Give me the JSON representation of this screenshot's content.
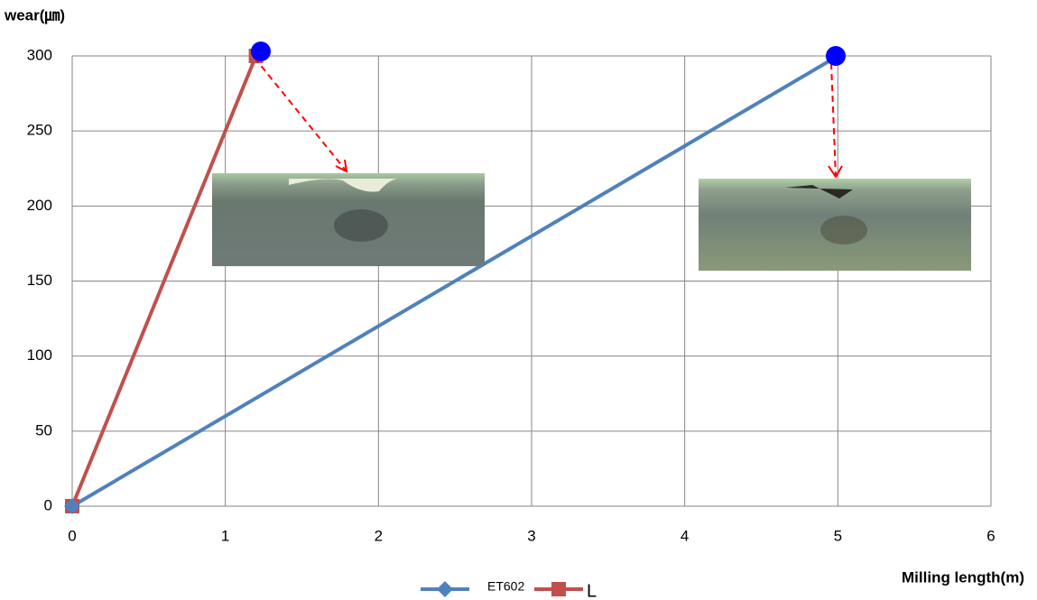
{
  "chart_data": {
    "type": "line",
    "y_label": "wear(㎛)",
    "x_label": "Milling length(m)",
    "series": [
      {
        "name": "ET602",
        "color": "#4f81bd",
        "marker": "diamond",
        "x": [
          0,
          5
        ],
        "values": [
          0,
          300
        ]
      },
      {
        "name": "L",
        "color": "#c0504d",
        "marker": "square",
        "x": [
          0,
          1.2
        ],
        "values": [
          0,
          300
        ]
      }
    ],
    "xlim": [
      0,
      6
    ],
    "xticks": [
      0,
      1,
      2,
      3,
      4,
      5,
      6
    ],
    "ylim": [
      0,
      300
    ],
    "yticks": [
      0,
      50,
      100,
      150,
      200,
      250,
      300
    ],
    "grid": true
  }
}
